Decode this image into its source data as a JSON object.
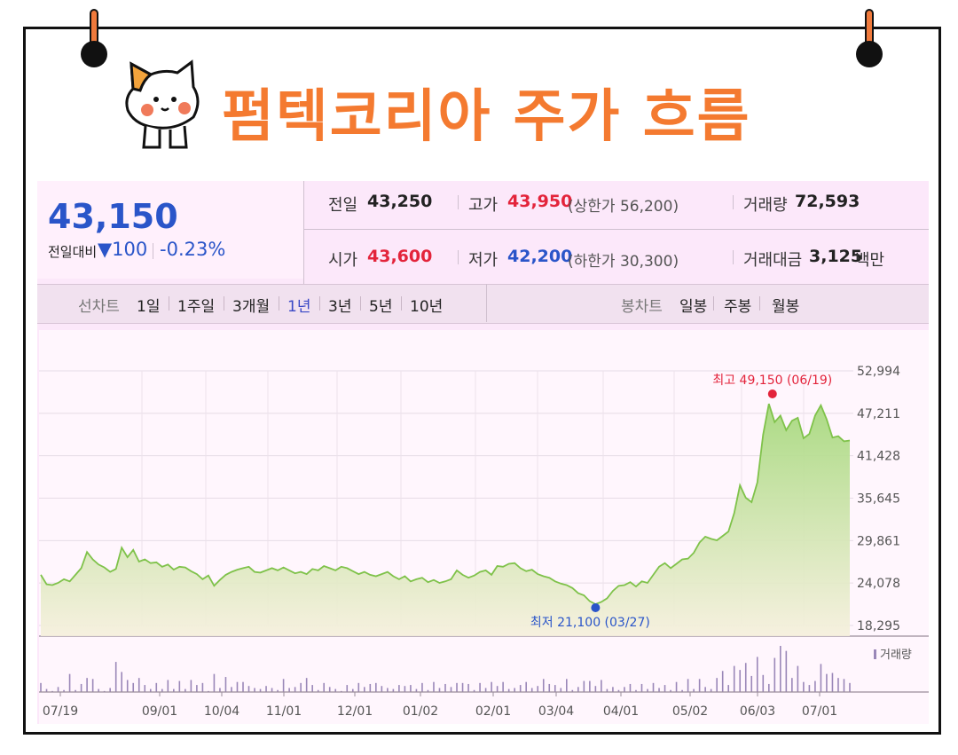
{
  "header": {
    "title": "펌텍코리아 주가 흐름"
  },
  "summary": {
    "price": "43,150",
    "change_label": "전일대비",
    "change_value": "▼100",
    "change_pct": "-0.23%",
    "prev_label": "전일",
    "prev_value": "43,250",
    "high_label": "고가",
    "high_value": "43,950",
    "high_limit": "(상한가 56,200)",
    "volume_label": "거래량",
    "volume_value": "72,593",
    "open_label": "시가",
    "open_value": "43,600",
    "low_label": "저가",
    "low_value": "42,200",
    "low_limit": "(하한가 30,300)",
    "amount_label": "거래대금",
    "amount_value": "3,125",
    "amount_unit": "백만"
  },
  "tabs": {
    "line_head": "선차트",
    "line": [
      "1일",
      "1주일",
      "3개월",
      "1년",
      "3년",
      "5년",
      "10년"
    ],
    "active": "1년",
    "candle_head": "봉차트",
    "candle": [
      "일봉",
      "주봉",
      "월봉"
    ]
  },
  "chart_data": {
    "type": "area",
    "y_ticks": [
      "52,994",
      "47,211",
      "41,428",
      "35,645",
      "29,861",
      "24,078",
      "18,295"
    ],
    "ylim": [
      18295,
      52994
    ],
    "x_tick_labels": [
      "07/19",
      "09/01",
      "10/04",
      "11/01",
      "12/01",
      "01/02",
      "02/01",
      "03/04",
      "04/01",
      "05/02",
      "06/03",
      "07/01"
    ],
    "series": [
      {
        "values": [
          25200,
          23900,
          23800,
          24100,
          24600,
          24300,
          25200,
          26100,
          28300,
          27300,
          26600,
          26200,
          25600,
          26000,
          28900,
          27600,
          28600,
          27000,
          27300,
          26800,
          26900,
          26300,
          26600,
          25900,
          26300,
          26200,
          25700,
          25300,
          24600,
          25100,
          23700,
          24500,
          25200,
          25600,
          25900,
          26100,
          26300,
          25600,
          25500,
          25800,
          26100,
          25800,
          26200,
          25800,
          25400,
          25600,
          25300,
          26000,
          25800,
          26400,
          26100,
          25800,
          26300,
          26100,
          25700,
          25300,
          25600,
          25200,
          25000,
          25300,
          25600,
          25000,
          24600,
          25000,
          24300,
          24600,
          24800,
          24200,
          24500,
          24100,
          24300,
          24600,
          25800,
          25200,
          24800,
          25100,
          25600,
          25800,
          25200,
          26400,
          26300,
          26700,
          26800,
          26100,
          25700,
          25900,
          25300,
          25000,
          24800,
          24300,
          24000,
          23800,
          23400,
          22700,
          22400,
          21600,
          21200,
          21500,
          22000,
          23000,
          23700,
          23800,
          24200,
          23600,
          24300,
          24100,
          25200,
          26300,
          26800,
          26100,
          26700,
          27300,
          27400,
          28200,
          29600,
          30400,
          30100,
          29900,
          30500,
          31100,
          33600,
          37400,
          35700,
          35100,
          37800,
          44300,
          48500,
          46000,
          46900,
          44900,
          46200,
          46600,
          43800,
          44400,
          46900,
          48300,
          46400,
          43900,
          44100,
          43400,
          43500
        ]
      }
    ],
    "high_annotation": "최고 49,150 (06/19)",
    "low_annotation": "최저 21,100 (03/27)",
    "volume": [
      9,
      3,
      1,
      5,
      2,
      18,
      2,
      8,
      14,
      13,
      3,
      1,
      4,
      30,
      20,
      12,
      9,
      14,
      7,
      3,
      9,
      3,
      12,
      3,
      11,
      3,
      12,
      7,
      9,
      1,
      18,
      4,
      15,
      5,
      10,
      10,
      6,
      4,
      3,
      6,
      4,
      2,
      13,
      4,
      5,
      9,
      14,
      7,
      2,
      9,
      5,
      3,
      1,
      7,
      3,
      9,
      5,
      8,
      9,
      6,
      4,
      3,
      7,
      6,
      7,
      3,
      9,
      2,
      10,
      4,
      8,
      5,
      9,
      9,
      8,
      2,
      9,
      4,
      10,
      6,
      10,
      3,
      4,
      7,
      10,
      4,
      6,
      13,
      8,
      7,
      4,
      13,
      2,
      5,
      11,
      11,
      6,
      12,
      3,
      5,
      2,
      5,
      8,
      2,
      8,
      3,
      9,
      4,
      7,
      2,
      10,
      2,
      13,
      3,
      13,
      5,
      3,
      14,
      21,
      7,
      26,
      22,
      29,
      16,
      35,
      17,
      8,
      34,
      46,
      41,
      14,
      26,
      10,
      7,
      11,
      28,
      18,
      19,
      14,
      13,
      9
    ],
    "volume_label": "거래량",
    "grid": true
  },
  "colors": {
    "accent": "#f47a30",
    "price_blue": "#2a55c9",
    "up_red": "#e3243b",
    "line_green": "#7fc24a",
    "panel_bg": "#fce8fa"
  }
}
